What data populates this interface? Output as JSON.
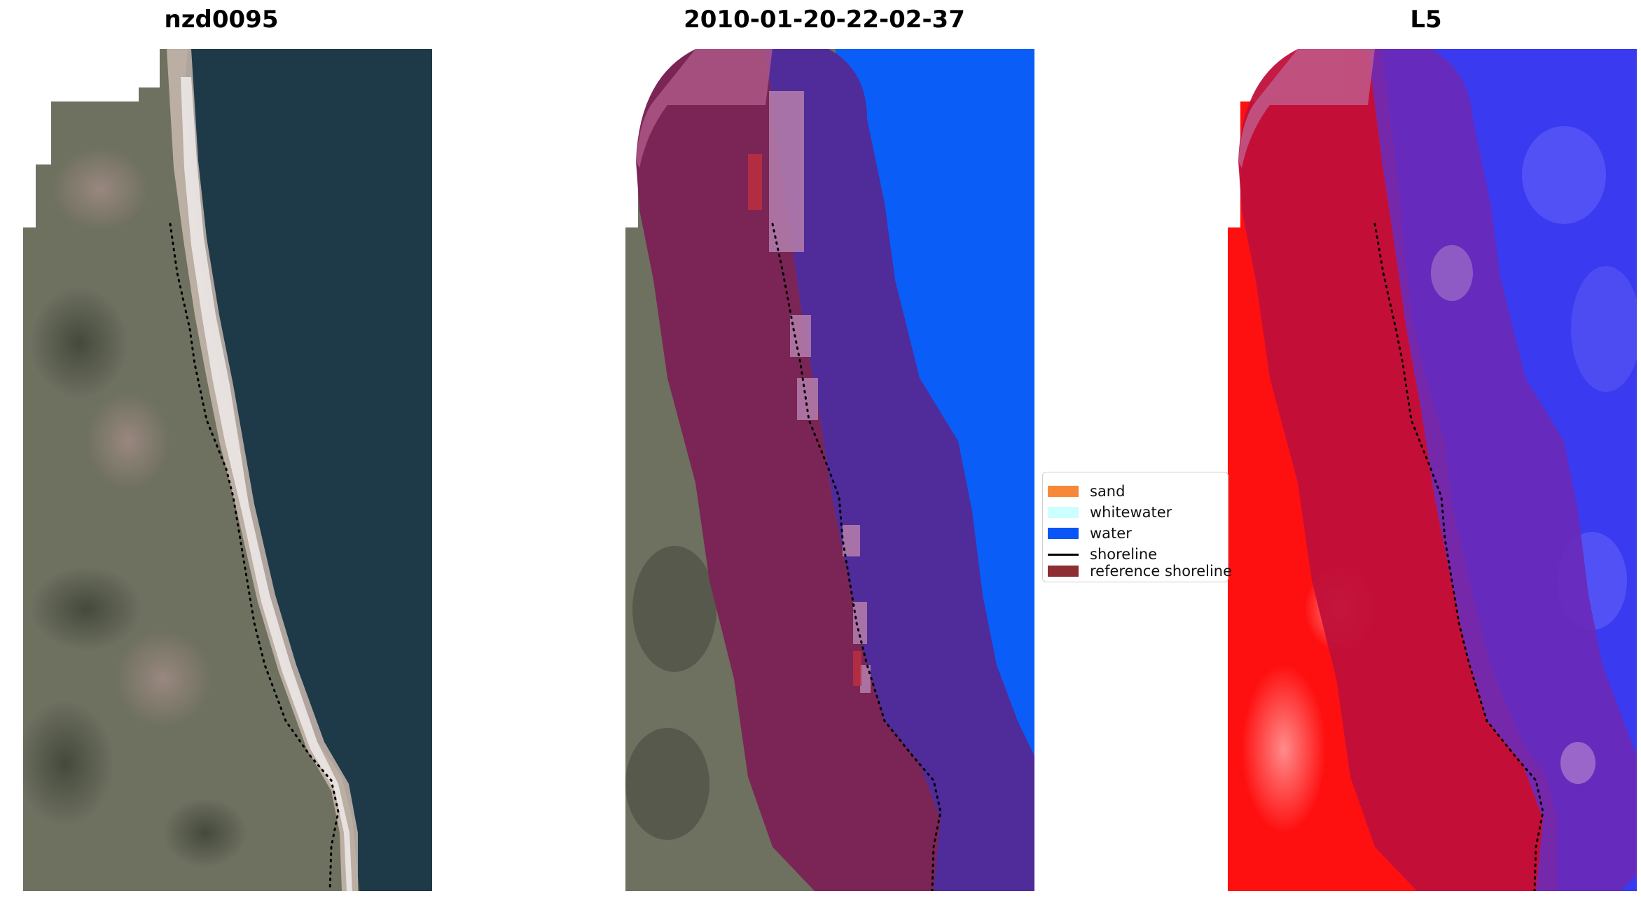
{
  "panels": [
    {
      "title": "nzd0095"
    },
    {
      "title": "2010-01-20-22-02-37"
    },
    {
      "title": "L5"
    }
  ],
  "legend": {
    "items": [
      {
        "label": "sand",
        "color": "#f7883a",
        "kind": "patch"
      },
      {
        "label": "whitewater",
        "color": "#ccffff",
        "kind": "patch"
      },
      {
        "label": "water",
        "color": "#0a55f5",
        "kind": "patch"
      },
      {
        "label": "shoreline",
        "color": "#000000",
        "kind": "line"
      },
      {
        "label": "reference shoreline",
        "color": "#8e2d33",
        "kind": "patch"
      }
    ]
  },
  "colors": {
    "sea": "#1e3a48",
    "land": "#6e7060",
    "buffer_land": "#7a2555",
    "buffer_sea": "#502b9a",
    "water_class": "#0a5ef7",
    "l5_land": "#ff1010",
    "l5_water": "#3a3af0"
  }
}
